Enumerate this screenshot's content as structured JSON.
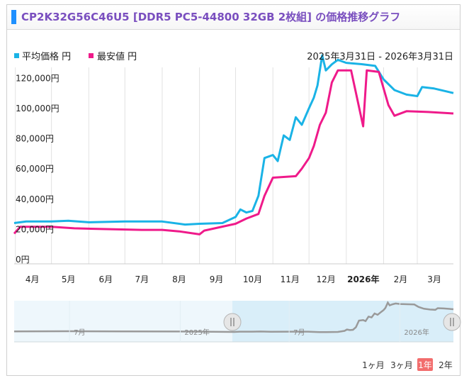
{
  "header": {
    "title": "CP2K32G56C46U5 [DDR5 PC5-44800 32GB 2枚組] の価格推移グラフ"
  },
  "legend": {
    "avg_label": "平均価格 円",
    "min_label": "最安値 円"
  },
  "date_range": "2025年3月31日 - 2026年3月31日",
  "colors": {
    "avg": "#1ab3e6",
    "min": "#ef1a8a"
  },
  "navigator": {
    "labels": [
      "7月",
      "2025年",
      "7月",
      "2026年"
    ]
  },
  "range_buttons": [
    {
      "label": "1ヶ月",
      "active": false
    },
    {
      "label": "3ヶ月",
      "active": false
    },
    {
      "label": "1年",
      "active": true
    },
    {
      "label": "2年",
      "active": false
    }
  ],
  "chart_data": {
    "type": "line",
    "x_axis": {
      "start": "2025-03-31",
      "end": "2026-03-31",
      "ticks": [
        "4月",
        "5月",
        "6月",
        "7月",
        "8月",
        "9月",
        "10月",
        "11月",
        "12月",
        "2026年",
        "2月",
        "3月"
      ]
    },
    "y_axis": {
      "min": 0,
      "max": 130000,
      "ticks": [
        "0円",
        "20,000円",
        "40,000円",
        "60,000円",
        "80,000円",
        "100,000円",
        "120,000円"
      ]
    },
    "grid": true,
    "legend_position": "top-left",
    "series": [
      {
        "name": "平均価格 円",
        "color": "#1ab3e6",
        "points": [
          [
            "2025-03-31",
            27000
          ],
          [
            "2025-04-10",
            28000
          ],
          [
            "2025-05-01",
            28000
          ],
          [
            "2025-05-15",
            28500
          ],
          [
            "2025-06-01",
            27500
          ],
          [
            "2025-07-01",
            28000
          ],
          [
            "2025-08-01",
            28000
          ],
          [
            "2025-08-20",
            26000
          ],
          [
            "2025-09-01",
            26500
          ],
          [
            "2025-09-20",
            27000
          ],
          [
            "2025-10-01",
            31000
          ],
          [
            "2025-10-05",
            36000
          ],
          [
            "2025-10-10",
            34000
          ],
          [
            "2025-10-15",
            35000
          ],
          [
            "2025-10-20",
            45000
          ],
          [
            "2025-10-25",
            70000
          ],
          [
            "2025-11-01",
            72000
          ],
          [
            "2025-11-05",
            68000
          ],
          [
            "2025-11-10",
            85000
          ],
          [
            "2025-11-15",
            82000
          ],
          [
            "2025-11-20",
            97000
          ],
          [
            "2025-11-25",
            92000
          ],
          [
            "2025-12-01",
            103000
          ],
          [
            "2025-12-05",
            110000
          ],
          [
            "2025-12-08",
            118000
          ],
          [
            "2025-12-12",
            138000
          ],
          [
            "2025-12-15",
            128000
          ],
          [
            "2025-12-20",
            132000
          ],
          [
            "2025-12-25",
            135000
          ],
          [
            "2026-01-01",
            133000
          ],
          [
            "2026-01-15",
            132000
          ],
          [
            "2026-01-25",
            131000
          ],
          [
            "2026-02-01",
            122000
          ],
          [
            "2026-02-10",
            115000
          ],
          [
            "2026-02-20",
            112000
          ],
          [
            "2026-03-01",
            111000
          ],
          [
            "2026-03-05",
            117000
          ],
          [
            "2026-03-15",
            116000
          ],
          [
            "2026-03-31",
            113000
          ]
        ]
      },
      {
        "name": "最安値 円",
        "color": "#ef1a8a",
        "points": [
          [
            "2025-03-31",
            20000
          ],
          [
            "2025-04-05",
            24500
          ],
          [
            "2025-05-01",
            24500
          ],
          [
            "2025-05-20",
            23500
          ],
          [
            "2025-06-15",
            23000
          ],
          [
            "2025-07-15",
            22500
          ],
          [
            "2025-08-01",
            22500
          ],
          [
            "2025-08-15",
            21500
          ],
          [
            "2025-09-01",
            19500
          ],
          [
            "2025-09-05",
            22000
          ],
          [
            "2025-10-01",
            26500
          ],
          [
            "2025-10-10",
            30000
          ],
          [
            "2025-10-20",
            33000
          ],
          [
            "2025-10-25",
            45000
          ],
          [
            "2025-11-01",
            57000
          ],
          [
            "2025-11-20",
            58000
          ],
          [
            "2025-11-25",
            63000
          ],
          [
            "2025-12-01",
            70000
          ],
          [
            "2025-12-05",
            78000
          ],
          [
            "2025-12-10",
            92000
          ],
          [
            "2025-12-15",
            100000
          ],
          [
            "2025-12-20",
            120000
          ],
          [
            "2025-12-25",
            128000
          ],
          [
            "2026-01-05",
            128000
          ],
          [
            "2026-01-15",
            91000
          ],
          [
            "2026-01-18",
            128000
          ],
          [
            "2026-01-28",
            127000
          ],
          [
            "2026-02-05",
            105000
          ],
          [
            "2026-02-10",
            98000
          ],
          [
            "2026-02-20",
            101000
          ],
          [
            "2026-03-10",
            100500
          ],
          [
            "2026-03-31",
            99500
          ]
        ]
      }
    ]
  }
}
